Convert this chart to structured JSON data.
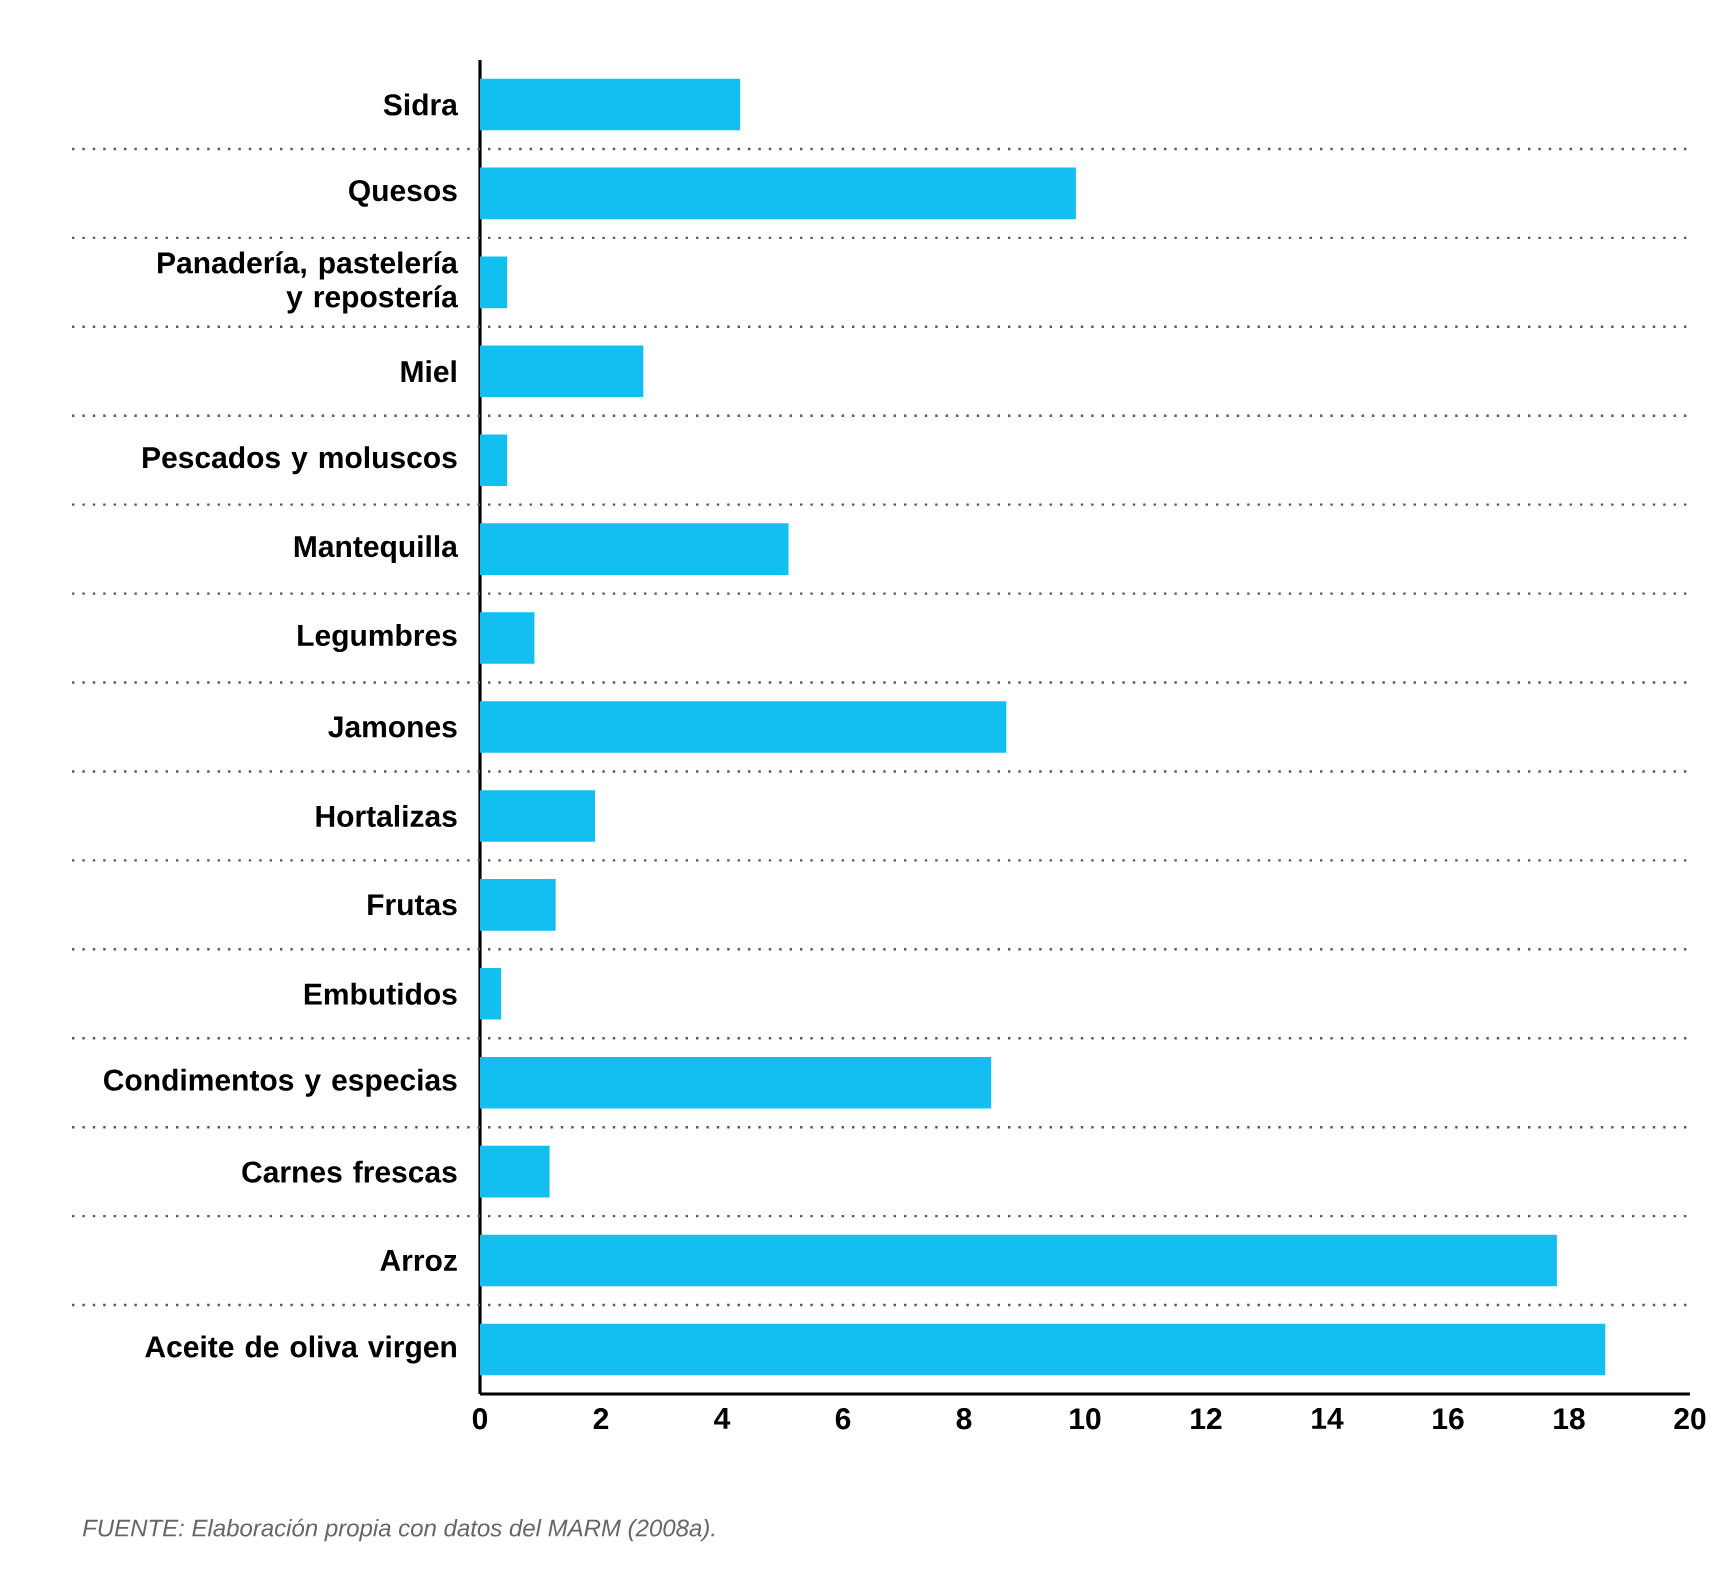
{
  "chart_data": {
    "type": "bar",
    "orientation": "horizontal",
    "categories": [
      "Sidra",
      "Quesos",
      "Panadería, pastelería y repostería",
      "Miel",
      "Pescados y moluscos",
      "Mantequilla",
      "Legumbres",
      "Jamones",
      "Hortalizas",
      "Frutas",
      "Embutidos",
      "Condimentos y especias",
      "Carnes frescas",
      "Arroz",
      "Aceite de oliva virgen"
    ],
    "values": [
      4.3,
      9.85,
      0.45,
      2.7,
      0.45,
      5.1,
      0.9,
      8.7,
      1.9,
      1.25,
      0.35,
      8.45,
      1.15,
      17.8,
      18.6
    ],
    "color": "#12bff0",
    "xlim": [
      0,
      20
    ],
    "xticks": [
      0,
      2,
      4,
      6,
      8,
      10,
      12,
      14,
      16,
      18,
      20
    ],
    "grid": true,
    "annotations": [
      "FUENTE: Elaboración propia con datos del MARM (2008a)."
    ]
  }
}
